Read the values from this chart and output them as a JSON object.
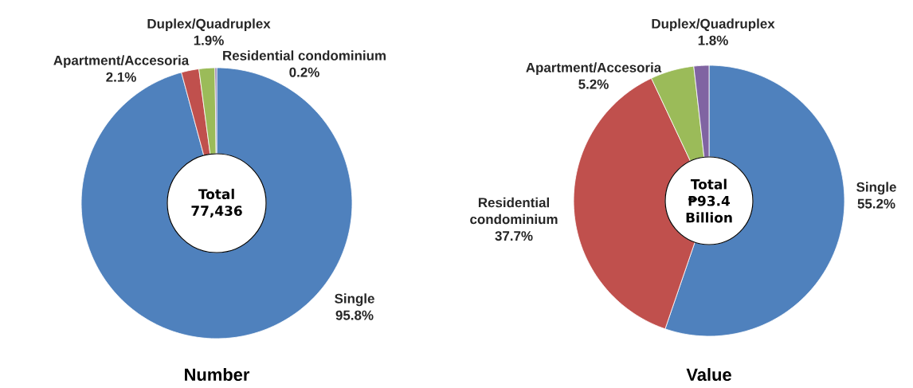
{
  "chart_data": [
    {
      "type": "donut",
      "title": "Number",
      "categories": [
        "Single",
        "Apartment/Accesoria",
        "Duplex/Quadruplex",
        "Residential condominium"
      ],
      "values": [
        95.8,
        2.1,
        1.9,
        0.2
      ],
      "value_labels": [
        "95.8%",
        "2.1%",
        "1.9%",
        "0.2%"
      ],
      "colors": [
        "#4f81bd",
        "#c0504d",
        "#9bbb59",
        "#8064a2"
      ],
      "annotations": [
        "Total",
        "77,436"
      ]
    },
    {
      "type": "donut",
      "title": "Value",
      "categories": [
        "Single",
        "Residential condominium",
        "Apartment/Accesoria",
        "Duplex/Quadruplex"
      ],
      "values": [
        55.2,
        37.7,
        5.2,
        1.8
      ],
      "value_labels": [
        "55.2%",
        "37.7%",
        "5.2%",
        "1.8%"
      ],
      "colors": [
        "#4f81bd",
        "#c0504d",
        "#9bbb59",
        "#8064a2"
      ],
      "annotations": [
        "Total",
        "₱93.4",
        "Billion"
      ]
    }
  ]
}
